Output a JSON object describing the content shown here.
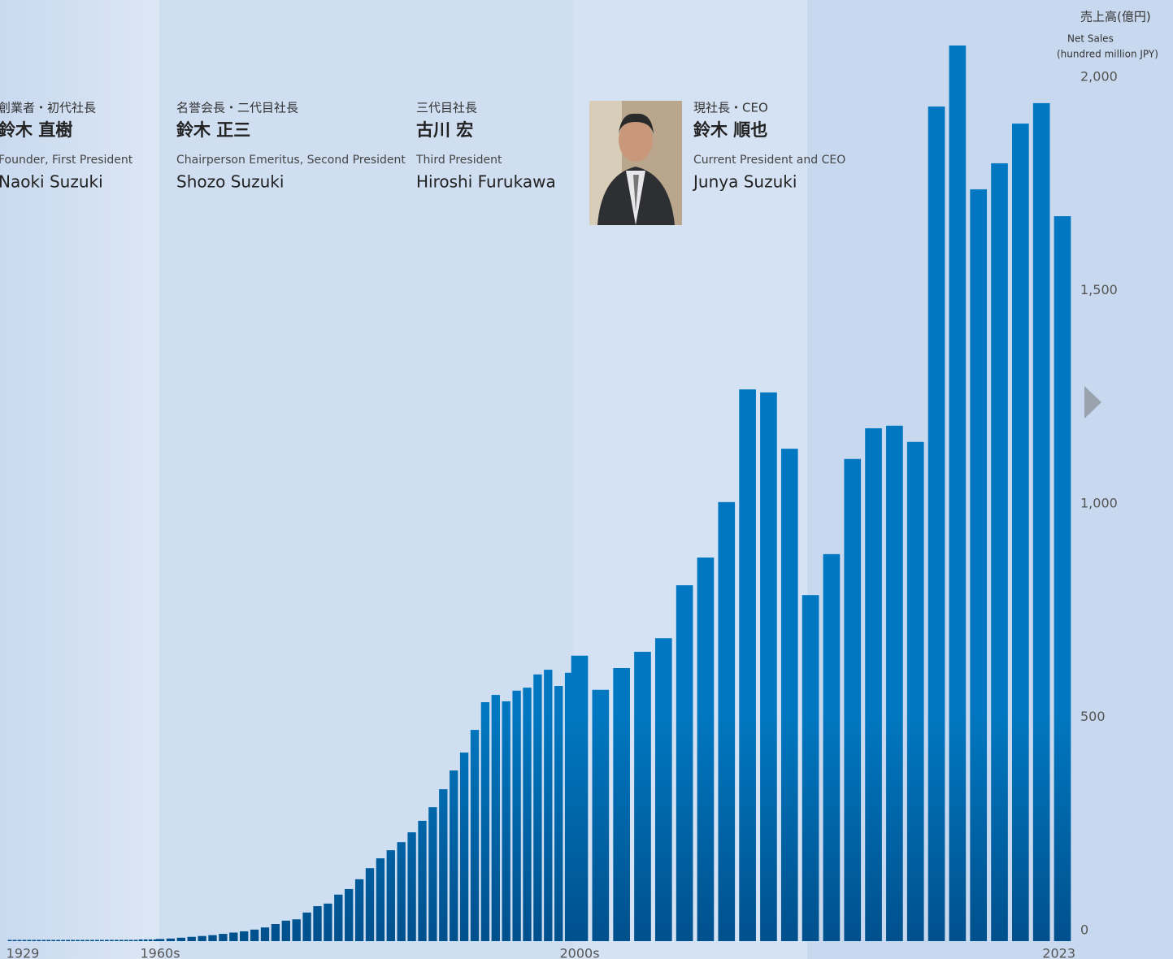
{
  "chart_data": {
    "type": "bar",
    "y_axis_label": [
      "売上高(億円)",
      "Net Sales",
      "(hundred million JPY)"
    ],
    "presidents": [
      {
        "role_ja": "創業者・初代社長",
        "name_ja": "鈴木 直樹",
        "role_en": "Founder, First President",
        "name_en": "Naoki Suzuki"
      },
      {
        "role_ja": "名誉会長・二代目社長",
        "name_ja": "鈴木 正三",
        "role_en": "Chairperson Emeritus, Second President",
        "name_en": "Shozo Suzuki"
      },
      {
        "role_ja": "三代目社長",
        "name_ja": "古川 宏",
        "role_en": "Third President",
        "name_en": "Hiroshi Furukawa"
      },
      {
        "role_ja": "現社長・CEO",
        "name_ja": "鈴木 順也",
        "role_en": "Current President and CEO",
        "name_en": "Junya Suzuki"
      }
    ],
    "categories": [
      "1929",
      null,
      null,
      null,
      null,
      null,
      null,
      null,
      null,
      null,
      null,
      null,
      null,
      null,
      null,
      null,
      null,
      null,
      null,
      null,
      null,
      null,
      null,
      null,
      null,
      null,
      null,
      null,
      null,
      null,
      null,
      "1960s",
      null,
      null,
      null,
      null,
      null,
      null,
      null,
      null,
      null,
      null,
      null,
      null,
      null,
      null,
      null,
      null,
      null,
      null,
      null,
      null,
      null,
      null,
      null,
      null,
      null,
      null,
      null,
      null,
      null,
      null,
      null,
      null,
      null,
      null,
      null,
      null,
      null,
      null,
      null,
      "2000s",
      null,
      null,
      null,
      null,
      null,
      null,
      null,
      null,
      null,
      null,
      null,
      null,
      null,
      null,
      null,
      null,
      null,
      null,
      null,
      null,
      null,
      null,
      "2023"
    ],
    "values": [
      1,
      1,
      1,
      1,
      1,
      1,
      1,
      1,
      1,
      1,
      2,
      2,
      2,
      2,
      2,
      2,
      2,
      2,
      2,
      2,
      3,
      3,
      3,
      3,
      3,
      3,
      3,
      4,
      4,
      4,
      4,
      5,
      6,
      8,
      10,
      12,
      14,
      17,
      20,
      23,
      27,
      32,
      40,
      48,
      51,
      67,
      82,
      88,
      109,
      122,
      145,
      171,
      194,
      213,
      232,
      255,
      282,
      314,
      356,
      400,
      442,
      495,
      560,
      577,
      562,
      587,
      594,
      625,
      636,
      598,
      629,
      669,
      589,
      640,
      678,
      710,
      834,
      899,
      1029,
      1293,
      1286,
      1154,
      811,
      907,
      1130,
      1202,
      1208,
      1170,
      1956,
      2099,
      1762,
      1823,
      1916,
      1964,
      1699
    ],
    "ylim": [
      0,
      2000
    ],
    "yticks": [
      0,
      500,
      {
        "value": 1000,
        "label": "1,000"
      },
      {
        "value": 1500,
        "label": "1,500"
      },
      {
        "value": 2000,
        "label": "2,000"
      }
    ]
  }
}
